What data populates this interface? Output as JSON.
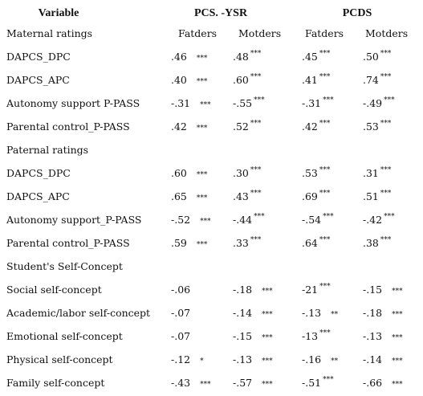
{
  "header": {
    "variable": "Variable",
    "groups": [
      "PCS. -YSR",
      "PCDS"
    ],
    "columns": [
      "Fatders",
      "Motders",
      "Fatders",
      "Motders"
    ]
  },
  "sections": [
    {
      "title": "Maternal ratings",
      "rows": [
        {
          "label": "DAPCS_DPC",
          "cells": [
            {
              "value": ".46",
              "stars": "***"
            },
            {
              "value": ".48",
              "stars": "***"
            },
            {
              "value": ".45",
              "stars": "***"
            },
            {
              "value": ".50",
              "stars": "***"
            }
          ]
        },
        {
          "label": "DAPCS_APC",
          "cells": [
            {
              "value": ".40",
              "stars": "***"
            },
            {
              "value": ".60",
              "stars": "***"
            },
            {
              "value": ".41",
              "stars": "***"
            },
            {
              "value": ".74",
              "stars": "***"
            }
          ]
        },
        {
          "label": "Autonomy support P-PASS",
          "cells": [
            {
              "value": "-.31",
              "stars": "***"
            },
            {
              "value": "-.55",
              "stars": "***"
            },
            {
              "value": "-.31",
              "stars": "***"
            },
            {
              "value": "-.49",
              "stars": "***"
            }
          ]
        },
        {
          "label": "Parental control_P-PASS",
          "cells": [
            {
              "value": ".42",
              "stars": "***"
            },
            {
              "value": ".52",
              "stars": "***"
            },
            {
              "value": ".42",
              "stars": "***"
            },
            {
              "value": ".53",
              "stars": "***"
            }
          ]
        }
      ]
    },
    {
      "title": "Paternal ratings",
      "rows": [
        {
          "label": "DAPCS_DPC",
          "cells": [
            {
              "value": ".60",
              "stars": "***"
            },
            {
              "value": ".30",
              "stars": "***"
            },
            {
              "value": ".53",
              "stars": "***"
            },
            {
              "value": ".31",
              "stars": "***"
            }
          ]
        },
        {
          "label": "DAPCS_APC",
          "cells": [
            {
              "value": ".65",
              "stars": "***"
            },
            {
              "value": ".43",
              "stars": "***"
            },
            {
              "value": ".69",
              "stars": "***"
            },
            {
              "value": ".51",
              "stars": "***"
            }
          ]
        },
        {
          "label": "Autonomy support_P-PASS",
          "cells": [
            {
              "value": "-.52",
              "stars": "***"
            },
            {
              "value": "-.44",
              "stars": "***"
            },
            {
              "value": "-.54",
              "stars": "***"
            },
            {
              "value": "-.42",
              "stars": "***"
            }
          ]
        },
        {
          "label": "Parental control_P-PASS",
          "cells": [
            {
              "value": ".59",
              "stars": "***"
            },
            {
              "value": ".33",
              "stars": "***"
            },
            {
              "value": ".64",
              "stars": "***"
            },
            {
              "value": ".38",
              "stars": "***"
            }
          ]
        }
      ]
    },
    {
      "title": "Student's Self-Concept",
      "rows": [
        {
          "label": "Social self-concept",
          "cells": [
            {
              "value": "-.06"
            },
            {
              "value": "-.18",
              "stars": "***"
            },
            {
              "value": "-21",
              "stars": "***"
            },
            {
              "value": "-.15",
              "stars": "***"
            }
          ]
        },
        {
          "label": "Academic/labor self-concept",
          "cells": [
            {
              "value": "-.07"
            },
            {
              "value": "-.14",
              "stars": "***"
            },
            {
              "value": "-.13",
              "stars": "**"
            },
            {
              "value": "-.18",
              "stars": "***"
            }
          ]
        },
        {
          "label": "Emotional self-concept",
          "cells": [
            {
              "value": "-.07"
            },
            {
              "value": "-.15",
              "stars": "***"
            },
            {
              "value": "-13",
              "stars": "***"
            },
            {
              "value": "-.13",
              "stars": "***"
            }
          ]
        },
        {
          "label": "Physical self-concept",
          "cells": [
            {
              "value": "-.12",
              "stars": "*"
            },
            {
              "value": "-.13",
              "stars": "***"
            },
            {
              "value": "-.16",
              "stars": "**"
            },
            {
              "value": "-.14",
              "stars": "***"
            }
          ]
        },
        {
          "label": "Family self-concept",
          "cells": [
            {
              "value": "-.43",
              "stars": "***"
            },
            {
              "value": "-.57",
              "stars": "***"
            },
            {
              "value": "-.51",
              "stars": "***"
            },
            {
              "value": "-.66",
              "stars": "***"
            }
          ]
        }
      ]
    }
  ]
}
